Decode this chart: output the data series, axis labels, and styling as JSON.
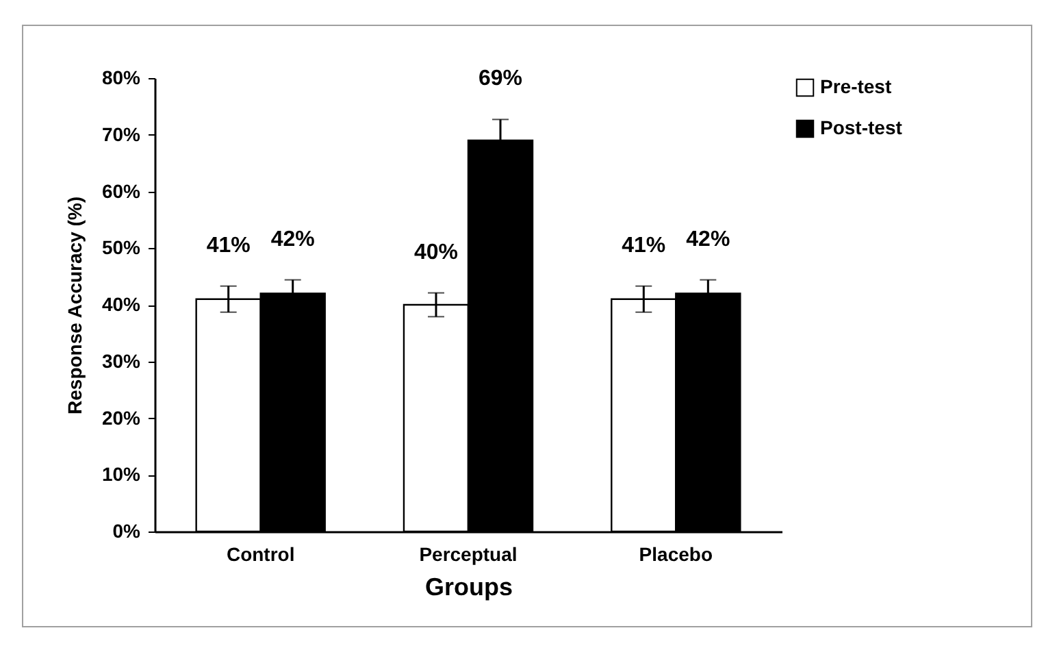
{
  "chart_data": {
    "type": "bar",
    "xlabel": "Groups",
    "ylabel": "Response Accuracy (%)",
    "categories": [
      "Control",
      "Perceptual",
      "Placebo"
    ],
    "series": [
      {
        "name": "Pre-test",
        "color": "#ffffff",
        "values": [
          41,
          40,
          41
        ],
        "errors": [
          2.3,
          2.1,
          2.3
        ],
        "value_labels": [
          "41%",
          "40%",
          "41%"
        ]
      },
      {
        "name": "Post-test",
        "color": "#000000",
        "values": [
          42,
          69,
          42
        ],
        "errors": [
          2.4,
          3.7,
          2.4
        ],
        "value_labels": [
          "42%",
          "69%",
          "42%"
        ]
      }
    ],
    "ylim": [
      0,
      80
    ],
    "yticks": [
      {
        "value": 0,
        "label": "0%"
      },
      {
        "value": 10,
        "label": "10%"
      },
      {
        "value": 20,
        "label": "20%"
      },
      {
        "value": 30,
        "label": "30%"
      },
      {
        "value": 40,
        "label": "40%"
      },
      {
        "value": 50,
        "label": "50%"
      },
      {
        "value": 60,
        "label": "60%"
      },
      {
        "value": 70,
        "label": "70%"
      },
      {
        "value": 80,
        "label": "80%"
      }
    ],
    "grid": false,
    "legend": "right"
  }
}
